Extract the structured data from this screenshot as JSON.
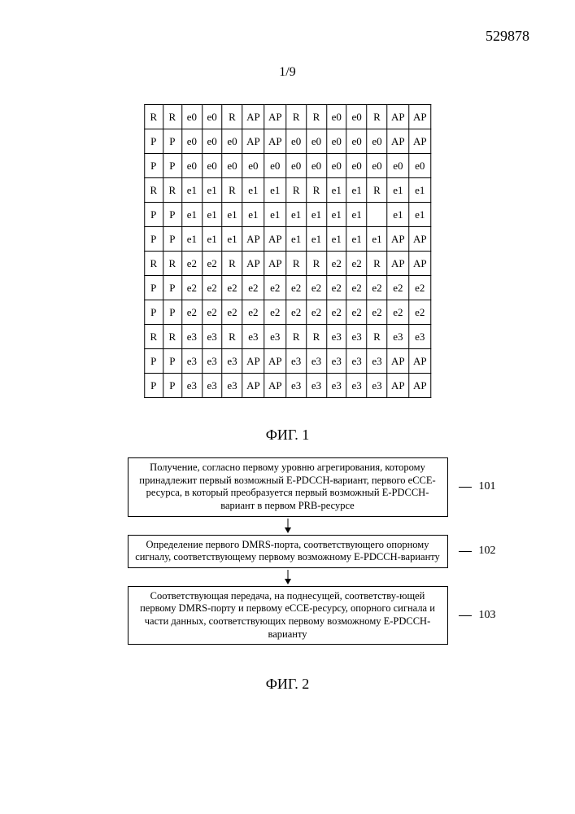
{
  "doc_number": "529878",
  "page_number": "1/9",
  "fig1_label": "ФИГ. 1",
  "fig2_label": "ФИГ. 2",
  "grid": {
    "cols": 14,
    "rows": [
      [
        "R",
        "R",
        "e0",
        "e0",
        "R",
        "AP",
        "AP",
        "R",
        "R",
        "e0",
        "e0",
        "R",
        "AP",
        "AP"
      ],
      [
        "P",
        "P",
        "e0",
        "e0",
        "e0",
        "AP",
        "AP",
        "e0",
        "e0",
        "e0",
        "e0",
        "e0",
        "AP",
        "AP"
      ],
      [
        "P",
        "P",
        "e0",
        "e0",
        "e0",
        "e0",
        "e0",
        "e0",
        "e0",
        "e0",
        "e0",
        "e0",
        "e0",
        "e0"
      ],
      [
        "R",
        "R",
        "e1",
        "e1",
        "R",
        "e1",
        "e1",
        "R",
        "R",
        "e1",
        "e1",
        "R",
        "e1",
        "e1"
      ],
      [
        "P",
        "P",
        "e1",
        "e1",
        "e1",
        "e1",
        "e1",
        "e1",
        "e1",
        "e1",
        "e1",
        "",
        "e1",
        "e1"
      ],
      [
        "P",
        "P",
        "e1",
        "e1",
        "e1",
        "AP",
        "AP",
        "e1",
        "e1",
        "e1",
        "e1",
        "e1",
        "AP",
        "AP"
      ],
      [
        "R",
        "R",
        "e2",
        "e2",
        "R",
        "AP",
        "AP",
        "R",
        "R",
        "e2",
        "e2",
        "R",
        "AP",
        "AP"
      ],
      [
        "P",
        "P",
        "e2",
        "e2",
        "e2",
        "e2",
        "e2",
        "e2",
        "e2",
        "e2",
        "e2",
        "e2",
        "e2",
        "e2"
      ],
      [
        "P",
        "P",
        "e2",
        "e2",
        "e2",
        "e2",
        "e2",
        "e2",
        "e2",
        "e2",
        "e2",
        "e2",
        "e2",
        "e2"
      ],
      [
        "R",
        "R",
        "e3",
        "e3",
        "R",
        "e3",
        "e3",
        "R",
        "R",
        "e3",
        "e3",
        "R",
        "e3",
        "e3"
      ],
      [
        "P",
        "P",
        "e3",
        "e3",
        "e3",
        "AP",
        "AP",
        "e3",
        "e3",
        "e3",
        "e3",
        "e3",
        "AP",
        "AP"
      ],
      [
        "P",
        "P",
        "e3",
        "e3",
        "e3",
        "AP",
        "AP",
        "e3",
        "e3",
        "e3",
        "e3",
        "e3",
        "AP",
        "AP"
      ]
    ],
    "border_color": "#000000",
    "cell_font_size": 13
  },
  "flow": {
    "steps": [
      {
        "num": "101",
        "text": "Получение, согласно первому уровню агрегирования, которому принадлежит первый возможный E-PDCCH-вариант, первого eCCE-ресурса, в который преобразуется первый возможный E-PDCCH-вариант в первом PRB-ресурсе"
      },
      {
        "num": "102",
        "text": "Определение первого DMRS-порта, соответствующего опорному сигналу, соответствующему первому возможному E-PDCCH-варианту"
      },
      {
        "num": "103",
        "text": "Соответствующая передача, на поднесущей, соответству-ющей первому DMRS-порту и первому eCCE-ресурсу, опорного сигнала и части данных, соответствующих первому возможному E-PDCCH-варианту"
      }
    ],
    "arrow_color": "#000000",
    "box_border_color": "#000000",
    "font_size": 12.5
  }
}
